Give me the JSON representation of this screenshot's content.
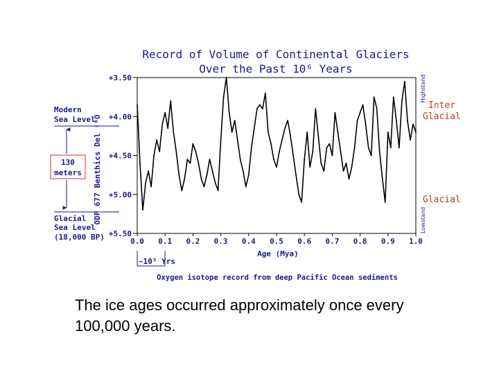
{
  "chart_data": {
    "type": "line",
    "title": "Record of Volume of Continental Glaciers",
    "subtitle": "Over the Past 10⁶ Years",
    "xlabel": "Age (Mya)",
    "ylabel": "ODP 677 Benthics Del ¹⁸O",
    "xlim": [
      0.0,
      1.0
    ],
    "ylim": [
      5.5,
      3.5
    ],
    "x_ticks": [
      "0.0",
      "0.1",
      "0.2",
      "0.3",
      "0.4",
      "0.5",
      "0.6",
      "0.7",
      "0.8",
      "0.9",
      "1.0"
    ],
    "y_ticks": [
      "+3.50",
      "+4.00",
      "+4.50",
      "+5.00",
      "+5.50"
    ],
    "right_labels": {
      "top": "Highstand",
      "bottom": "Lowstand"
    },
    "left_annotations": {
      "modern_line1": "Modern",
      "modern_line2": "Sea Level",
      "range_line1": "130",
      "range_line2": "meters",
      "glacial_line1": "Glacial",
      "glacial_line2": "Sea Level",
      "glacial_line3": "(18,000 BP)"
    },
    "right_annotations": {
      "interglacial_line1": "Inter",
      "interglacial_line2": "Glacial",
      "glacial": "Glacial"
    },
    "period_label": "~10⁵ Yrs",
    "source_note": "Oxygen isotope record from deep Pacific Ocean sediments",
    "series": [
      {
        "name": "δ18O",
        "x": [
          0.0,
          0.01,
          0.02,
          0.03,
          0.04,
          0.05,
          0.06,
          0.07,
          0.08,
          0.09,
          0.1,
          0.11,
          0.12,
          0.13,
          0.14,
          0.15,
          0.16,
          0.17,
          0.18,
          0.19,
          0.2,
          0.21,
          0.22,
          0.23,
          0.24,
          0.25,
          0.26,
          0.27,
          0.28,
          0.29,
          0.3,
          0.31,
          0.32,
          0.33,
          0.34,
          0.35,
          0.36,
          0.37,
          0.38,
          0.39,
          0.4,
          0.41,
          0.42,
          0.43,
          0.44,
          0.45,
          0.46,
          0.47,
          0.48,
          0.49,
          0.5,
          0.51,
          0.52,
          0.53,
          0.54,
          0.55,
          0.56,
          0.57,
          0.58,
          0.59,
          0.6,
          0.61,
          0.62,
          0.63,
          0.64,
          0.65,
          0.66,
          0.67,
          0.68,
          0.69,
          0.7,
          0.71,
          0.72,
          0.73,
          0.74,
          0.75,
          0.76,
          0.77,
          0.78,
          0.79,
          0.8,
          0.81,
          0.82,
          0.83,
          0.84,
          0.85,
          0.86,
          0.87,
          0.88,
          0.89,
          0.9,
          0.91,
          0.92,
          0.93,
          0.94,
          0.95,
          0.96,
          0.97,
          0.98,
          0.99,
          1.0
        ],
        "y": [
          3.85,
          4.6,
          5.2,
          4.85,
          4.7,
          4.9,
          4.5,
          4.3,
          4.45,
          4.1,
          3.95,
          4.15,
          3.8,
          4.2,
          4.45,
          4.75,
          4.95,
          4.8,
          4.55,
          4.6,
          4.35,
          4.45,
          4.6,
          4.8,
          4.9,
          4.75,
          4.55,
          4.7,
          4.85,
          4.95,
          4.3,
          3.75,
          3.5,
          3.95,
          4.2,
          4.05,
          4.3,
          4.55,
          4.7,
          4.9,
          4.75,
          4.4,
          4.15,
          3.9,
          3.85,
          3.9,
          3.7,
          4.2,
          4.35,
          4.55,
          4.65,
          4.45,
          4.3,
          4.15,
          4.05,
          4.25,
          4.5,
          4.75,
          5.0,
          5.1,
          4.55,
          4.2,
          4.65,
          4.45,
          3.9,
          4.25,
          4.6,
          4.7,
          4.4,
          4.35,
          4.5,
          3.95,
          4.2,
          4.45,
          4.7,
          4.6,
          4.8,
          4.65,
          4.4,
          4.05,
          3.95,
          3.85,
          4.1,
          4.4,
          4.5,
          3.75,
          3.9,
          4.45,
          4.8,
          5.1,
          4.2,
          4.4,
          3.75,
          4.05,
          4.4,
          3.8,
          3.55,
          4.05,
          4.3,
          4.1,
          4.2
        ]
      }
    ]
  }
}
